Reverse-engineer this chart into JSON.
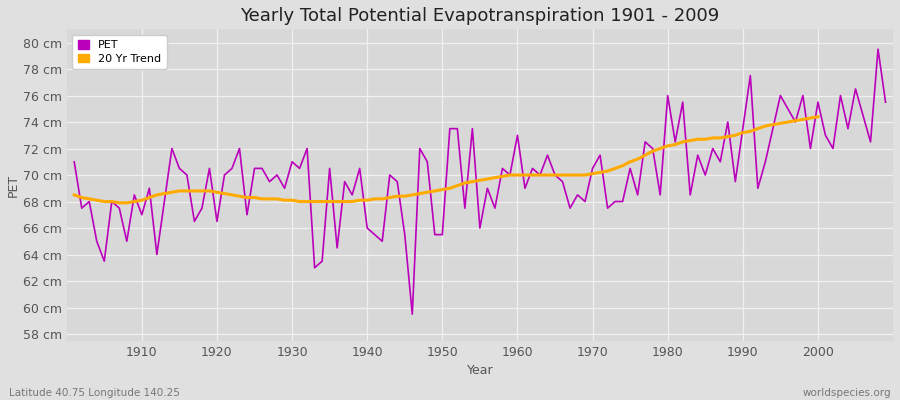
{
  "title": "Yearly Total Potential Evapotranspiration 1901 - 2009",
  "xlabel": "Year",
  "ylabel": "PET",
  "footer_left": "Latitude 40.75 Longitude 140.25",
  "footer_right": "worldspecies.org",
  "pet_color": "#bb00bb",
  "trend_color": "#ffaa00",
  "bg_color": "#e0e0e0",
  "plot_bg_color": "#d8d8d8",
  "grid_color": "#f0f0f0",
  "ylim": [
    57.5,
    81
  ],
  "yticks": [
    58,
    60,
    62,
    64,
    66,
    68,
    70,
    72,
    74,
    76,
    78,
    80
  ],
  "years": [
    1901,
    1902,
    1903,
    1904,
    1905,
    1906,
    1907,
    1908,
    1909,
    1910,
    1911,
    1912,
    1913,
    1914,
    1915,
    1916,
    1917,
    1918,
    1919,
    1920,
    1921,
    1922,
    1923,
    1924,
    1925,
    1926,
    1927,
    1928,
    1929,
    1930,
    1931,
    1932,
    1933,
    1934,
    1935,
    1936,
    1937,
    1938,
    1939,
    1940,
    1941,
    1942,
    1943,
    1944,
    1945,
    1946,
    1947,
    1948,
    1949,
    1950,
    1951,
    1952,
    1953,
    1954,
    1955,
    1956,
    1957,
    1958,
    1959,
    1960,
    1961,
    1962,
    1963,
    1964,
    1965,
    1966,
    1967,
    1968,
    1969,
    1970,
    1971,
    1972,
    1973,
    1974,
    1975,
    1976,
    1977,
    1978,
    1979,
    1980,
    1981,
    1982,
    1983,
    1984,
    1985,
    1986,
    1987,
    1988,
    1989,
    1990,
    1991,
    1992,
    1993,
    1994,
    1995,
    1996,
    1997,
    1998,
    1999,
    2000,
    2001,
    2002,
    2003,
    2004,
    2005,
    2006,
    2007,
    2008,
    2009
  ],
  "pet_values": [
    71.0,
    67.5,
    68.0,
    65.0,
    63.5,
    68.0,
    67.5,
    65.0,
    68.5,
    67.0,
    69.0,
    64.0,
    68.0,
    72.0,
    70.5,
    70.0,
    66.5,
    67.5,
    70.5,
    66.5,
    70.0,
    70.5,
    72.0,
    67.0,
    70.5,
    70.5,
    69.5,
    70.0,
    69.0,
    71.0,
    70.5,
    72.0,
    63.0,
    63.5,
    70.5,
    64.5,
    69.5,
    68.5,
    70.5,
    66.0,
    65.5,
    65.0,
    70.0,
    69.5,
    65.5,
    59.5,
    72.0,
    71.0,
    65.5,
    65.5,
    73.5,
    73.5,
    67.5,
    73.5,
    66.0,
    69.0,
    67.5,
    70.5,
    70.0,
    73.0,
    69.0,
    70.5,
    70.0,
    71.5,
    70.0,
    69.5,
    67.5,
    68.5,
    68.0,
    70.5,
    71.5,
    67.5,
    68.0,
    68.0,
    70.5,
    68.5,
    72.5,
    72.0,
    68.5,
    76.0,
    72.5,
    75.5,
    68.5,
    71.5,
    70.0,
    72.0,
    71.0,
    74.0,
    69.5,
    73.5,
    77.5,
    69.0,
    71.0,
    73.5,
    76.0,
    75.0,
    74.0,
    76.0,
    72.0,
    75.5,
    73.0,
    72.0,
    76.0,
    73.5,
    76.5,
    74.5,
    72.5,
    79.5,
    75.5
  ],
  "trend_values": [
    68.5,
    68.3,
    68.2,
    68.1,
    68.0,
    68.0,
    67.9,
    67.9,
    68.0,
    68.1,
    68.3,
    68.5,
    68.6,
    68.7,
    68.8,
    68.8,
    68.8,
    68.8,
    68.8,
    68.7,
    68.6,
    68.5,
    68.4,
    68.3,
    68.3,
    68.2,
    68.2,
    68.2,
    68.1,
    68.1,
    68.0,
    68.0,
    68.0,
    68.0,
    68.0,
    68.0,
    68.0,
    68.0,
    68.1,
    68.1,
    68.2,
    68.2,
    68.3,
    68.4,
    68.4,
    68.5,
    68.6,
    68.7,
    68.8,
    68.9,
    69.0,
    69.2,
    69.4,
    69.5,
    69.6,
    69.7,
    69.8,
    69.9,
    70.0,
    70.0,
    70.0,
    70.0,
    70.0,
    70.0,
    70.0,
    70.0,
    70.0,
    70.0,
    70.0,
    70.1,
    70.2,
    70.3,
    70.5,
    70.7,
    71.0,
    71.2,
    71.5,
    71.8,
    72.0,
    72.2,
    72.3,
    72.5,
    72.6,
    72.7,
    72.7,
    72.8,
    72.8,
    72.9,
    73.0,
    73.2,
    73.3,
    73.5,
    73.7,
    73.8,
    73.9,
    74.0,
    74.1,
    74.2,
    74.3,
    74.4
  ],
  "legend_pet_label": "PET",
  "legend_trend_label": "20 Yr Trend",
  "xtick_positions": [
    1910,
    1920,
    1930,
    1940,
    1950,
    1960,
    1970,
    1980,
    1990,
    2000
  ],
  "linewidth_pet": 1.2,
  "linewidth_trend": 2.2,
  "title_fontsize": 13,
  "tick_fontsize": 9,
  "axis_label_fontsize": 9,
  "footer_fontsize": 7.5
}
